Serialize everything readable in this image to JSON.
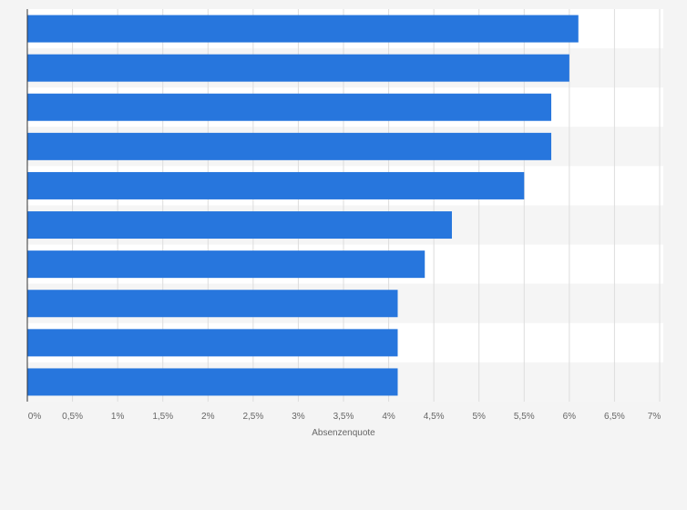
{
  "chart_data": {
    "type": "bar",
    "orientation": "horizontal",
    "values": [
      6.1,
      6.0,
      5.8,
      5.8,
      5.5,
      4.7,
      4.4,
      4.1,
      4.1,
      4.1
    ],
    "xlabel": "Absenzenquote",
    "xlim": [
      0,
      7
    ],
    "xticks": [
      "0%",
      "0,5%",
      "1%",
      "1,5%",
      "2%",
      "2,5%",
      "3%",
      "3,5%",
      "4%",
      "4,5%",
      "5%",
      "5,5%",
      "6%",
      "6,5%",
      "7%"
    ],
    "grid": true,
    "legend": "none"
  },
  "colors": {
    "bar": "#2776dd",
    "band_light": "#ffffff",
    "band_dark": "#f5f5f5",
    "grid": "#dddddd",
    "axis": "#333333",
    "tick_text": "#666666"
  }
}
